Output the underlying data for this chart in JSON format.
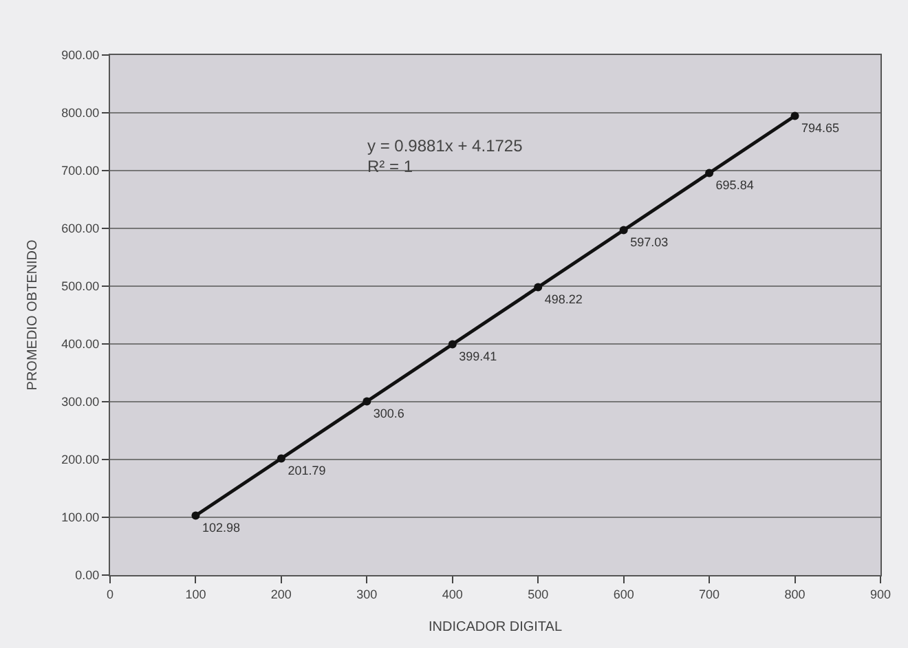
{
  "chart_data": {
    "type": "line",
    "xlabel": "INDICADOR DIGITAL",
    "ylabel": "PROMEDIO OBTENIDO",
    "x": [
      100,
      200,
      300,
      400,
      500,
      600,
      700,
      800
    ],
    "series": [
      {
        "color": "#111111",
        "values": [
          102.98,
          201.79,
          300.6,
          399.41,
          498.22,
          597.03,
          695.84,
          794.65
        ]
      }
    ],
    "data_labels": true,
    "marker": "circle",
    "line_style": "solid",
    "xlim": [
      0,
      900
    ],
    "xticks": [
      0,
      100,
      200,
      300,
      400,
      500,
      600,
      700,
      800,
      900
    ],
    "ylim": [
      0,
      900
    ],
    "yticks": [
      {
        "value": 0,
        "label": "0.00"
      },
      {
        "value": 100,
        "label": "100.00"
      },
      {
        "value": 200,
        "label": "200.00"
      },
      {
        "value": 300,
        "label": "300.00"
      },
      {
        "value": 400,
        "label": "400.00"
      },
      {
        "value": 500,
        "label": "500.00"
      },
      {
        "value": 600,
        "label": "600.00"
      },
      {
        "value": 700,
        "label": "700.00"
      },
      {
        "value": 800,
        "label": "800.00"
      },
      {
        "value": 900,
        "label": "900.00"
      }
    ],
    "grid": "y",
    "legend": false,
    "annotations": [
      "y = 0.9881x + 4.1725",
      "R² = 1"
    ]
  }
}
